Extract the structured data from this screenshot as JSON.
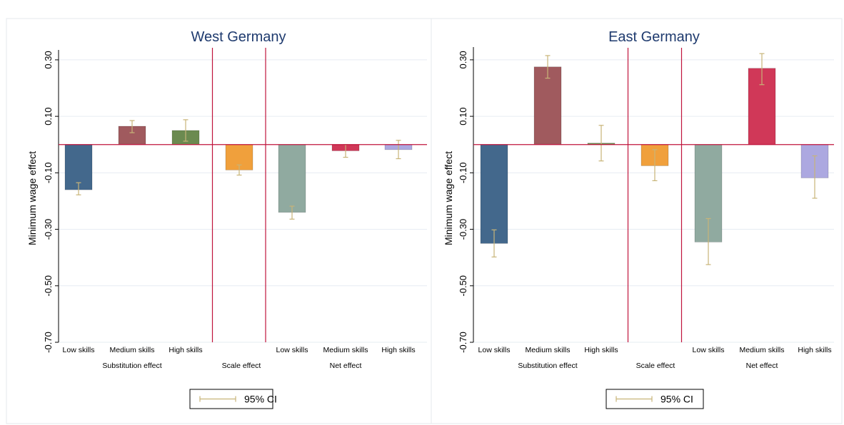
{
  "chart_data": [
    {
      "type": "bar",
      "title": "West Germany",
      "ylabel": "Minimum wage effect",
      "ylim": [
        -0.7,
        0.32
      ],
      "yticks": [
        0.3,
        0.1,
        -0.1,
        -0.3,
        -0.5,
        -0.7
      ],
      "ytick_labels": [
        "0.30",
        "0.10",
        "-0.10",
        "-0.30",
        "-0.50",
        "-0.70"
      ],
      "grid": true,
      "categories": [
        "Low skills",
        "Medium skills",
        "High skills",
        "",
        "Low skills",
        "Medium skills",
        "High skills"
      ],
      "groups": [
        {
          "label": "Substitution effect",
          "start": 0,
          "end": 2
        },
        {
          "label": "Scale effect",
          "start": 3,
          "end": 3
        },
        {
          "label": "Net effect",
          "start": 4,
          "end": 6
        }
      ],
      "values": [
        -0.16,
        0.065,
        0.05,
        -0.09,
        -0.24,
        -0.022,
        -0.018
      ],
      "ci_low": [
        -0.178,
        0.042,
        0.012,
        -0.108,
        -0.264,
        -0.045,
        -0.05
      ],
      "ci_high": [
        -0.135,
        0.085,
        0.088,
        -0.072,
        -0.218,
        0.0,
        0.015
      ],
      "colors": [
        "#43688c",
        "#a05a5e",
        "#6b8a50",
        "#f0a03c",
        "#90aaa0",
        "#d03858",
        "#aca8e0"
      ],
      "separators_after": [
        2,
        3
      ],
      "legend": {
        "label": "95% CI",
        "position": "bottom"
      }
    },
    {
      "type": "bar",
      "title": "East Germany",
      "ylabel": "Minimum wage effect",
      "ylim": [
        -0.7,
        0.33
      ],
      "yticks": [
        0.3,
        0.1,
        -0.1,
        -0.3,
        -0.5,
        -0.7
      ],
      "ytick_labels": [
        "0.30",
        "0.10",
        "-0.10",
        "-0.30",
        "-0.50",
        "-0.70"
      ],
      "grid": true,
      "categories": [
        "Low skills",
        "Medium skills",
        "High skills",
        "",
        "Low skills",
        "Medium skills",
        "High skills"
      ],
      "groups": [
        {
          "label": "Substitution effect",
          "start": 0,
          "end": 2
        },
        {
          "label": "Scale effect",
          "start": 3,
          "end": 3
        },
        {
          "label": "Net effect",
          "start": 4,
          "end": 6
        }
      ],
      "values": [
        -0.35,
        0.275,
        0.005,
        -0.075,
        -0.345,
        0.27,
        -0.118
      ],
      "ci_low": [
        -0.398,
        0.235,
        -0.058,
        -0.128,
        -0.425,
        0.212,
        -0.19
      ],
      "ci_high": [
        -0.302,
        0.315,
        0.068,
        -0.018,
        -0.262,
        0.322,
        -0.04
      ],
      "colors": [
        "#43688c",
        "#a05a5e",
        "#6b8a50",
        "#f0a03c",
        "#90aaa0",
        "#d03858",
        "#aca8e0"
      ],
      "separators_after": [
        2,
        3
      ],
      "legend": {
        "label": "95% CI",
        "position": "bottom"
      }
    }
  ],
  "style": {
    "title_color": "#1e3a6e",
    "zero_line_color": "#c0143c",
    "separator_color": "#c0143c",
    "ci_color": "#c8b478",
    "grid_color": "#e6ecf2",
    "text_color": "#000000"
  }
}
